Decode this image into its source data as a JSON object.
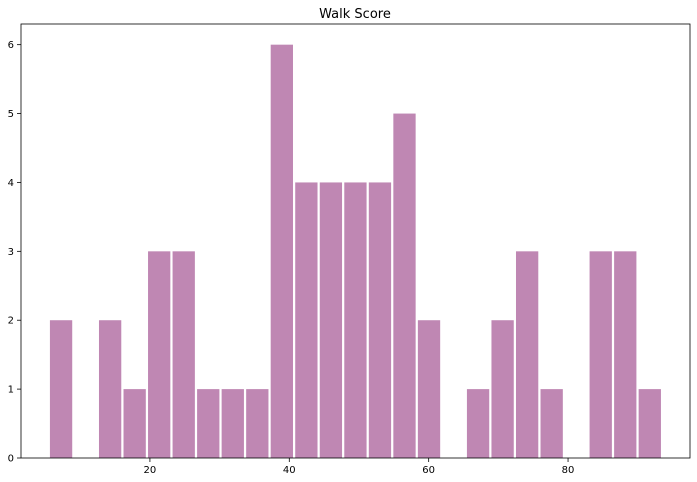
{
  "chart_data": {
    "type": "bar",
    "title": "Walk Score",
    "xlabel": "",
    "ylabel": "",
    "xlim": [
      1.5,
      97.5
    ],
    "ylim": [
      0,
      6.3
    ],
    "bar_width": 3.2,
    "x_ticks": [
      20,
      40,
      60,
      80
    ],
    "y_ticks": [
      0,
      1,
      2,
      3,
      4,
      5,
      6
    ],
    "x_tick_labels": [
      "20",
      "40",
      "60",
      "80"
    ],
    "y_tick_labels": [
      "0",
      "1",
      "2",
      "3",
      "4",
      "5",
      "6"
    ],
    "bins": [
      {
        "x": 7.25,
        "value": 2
      },
      {
        "x": 10.77,
        "value": 0
      },
      {
        "x": 14.29,
        "value": 2
      },
      {
        "x": 17.81,
        "value": 1
      },
      {
        "x": 21.33,
        "value": 3
      },
      {
        "x": 24.85,
        "value": 3
      },
      {
        "x": 28.37,
        "value": 1
      },
      {
        "x": 31.89,
        "value": 1
      },
      {
        "x": 35.41,
        "value": 1
      },
      {
        "x": 38.93,
        "value": 6
      },
      {
        "x": 42.45,
        "value": 4
      },
      {
        "x": 45.97,
        "value": 4
      },
      {
        "x": 49.49,
        "value": 4
      },
      {
        "x": 53.01,
        "value": 4
      },
      {
        "x": 56.53,
        "value": 5
      },
      {
        "x": 60.05,
        "value": 2
      },
      {
        "x": 63.57,
        "value": 0
      },
      {
        "x": 67.09,
        "value": 1
      },
      {
        "x": 70.61,
        "value": 2
      },
      {
        "x": 74.13,
        "value": 3
      },
      {
        "x": 77.65,
        "value": 1
      },
      {
        "x": 81.17,
        "value": 0
      },
      {
        "x": 84.69,
        "value": 3
      },
      {
        "x": 88.21,
        "value": 3
      },
      {
        "x": 91.73,
        "value": 1
      }
    ],
    "bar_color": "#bf87b3",
    "grid": false,
    "legend": "none"
  }
}
